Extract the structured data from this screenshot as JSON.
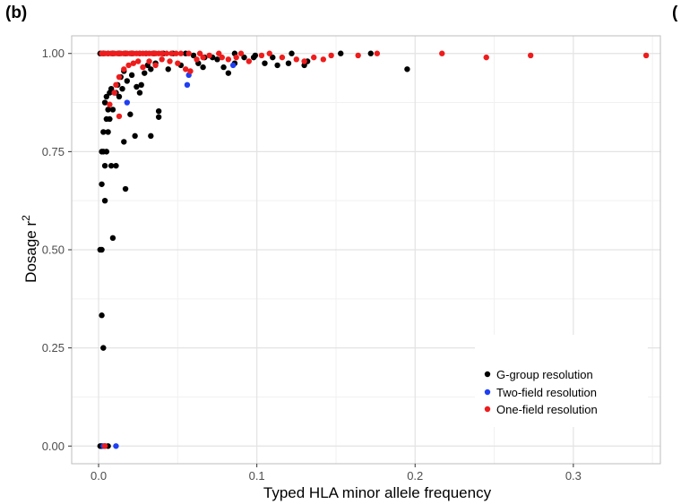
{
  "panel_label": "(b)",
  "next_panel_label": "(",
  "colors": {
    "g_group": "#000000",
    "two_field": "#1f3ff2",
    "one_field": "#ee1c1c",
    "grid_major": "#e3e3e3",
    "grid_minor": "#f1f1f1",
    "frame": "#bdbdbd"
  },
  "chart_data": {
    "type": "scatter",
    "xlabel": "Typed HLA minor allele frequency",
    "ylabel": "Dosage r",
    "ylabel_sup": "2",
    "xlim": [
      -0.017,
      0.355
    ],
    "ylim": [
      -0.045,
      1.045
    ],
    "x_ticks": [
      0.0,
      0.1,
      0.2,
      0.3
    ],
    "x_tick_labels": [
      "0.0",
      "0.1",
      "0.2",
      "0.3"
    ],
    "y_ticks": [
      0.0,
      0.25,
      0.5,
      0.75,
      1.0
    ],
    "y_tick_labels": [
      "0.00",
      "0.25",
      "0.50",
      "0.75",
      "1.00"
    ],
    "grid": true,
    "legend_position": "bottom-right",
    "series": [
      {
        "name": "G-group resolution",
        "color": "#000000",
        "points": [
          [
            0.001,
            0.0
          ],
          [
            0.002,
            0.0
          ],
          [
            0.004,
            0.0
          ],
          [
            0.006,
            0.0
          ],
          [
            0.002,
            0.333
          ],
          [
            0.003,
            0.25
          ],
          [
            0.001,
            0.5
          ],
          [
            0.002,
            0.5
          ],
          [
            0.009,
            0.53
          ],
          [
            0.002,
            0.667
          ],
          [
            0.004,
            0.625
          ],
          [
            0.017,
            0.655
          ],
          [
            0.002,
            0.75
          ],
          [
            0.003,
            0.75
          ],
          [
            0.005,
            0.75
          ],
          [
            0.004,
            0.714
          ],
          [
            0.008,
            0.714
          ],
          [
            0.011,
            0.714
          ],
          [
            0.016,
            0.775
          ],
          [
            0.023,
            0.79
          ],
          [
            0.033,
            0.79
          ],
          [
            0.003,
            0.8
          ],
          [
            0.006,
            0.8
          ],
          [
            0.005,
            0.833
          ],
          [
            0.007,
            0.833
          ],
          [
            0.006,
            0.857
          ],
          [
            0.004,
            0.875
          ],
          [
            0.009,
            0.857
          ],
          [
            0.011,
            0.9
          ],
          [
            0.013,
            0.89
          ],
          [
            0.015,
            0.91
          ],
          [
            0.02,
            0.845
          ],
          [
            0.038,
            0.838
          ],
          [
            0.038,
            0.853
          ],
          [
            0.005,
            0.89
          ],
          [
            0.007,
            0.9
          ],
          [
            0.008,
            0.91
          ],
          [
            0.012,
            0.92
          ],
          [
            0.014,
            0.94
          ],
          [
            0.016,
            0.955
          ],
          [
            0.018,
            0.93
          ],
          [
            0.021,
            0.945
          ],
          [
            0.024,
            0.915
          ],
          [
            0.026,
            0.9
          ],
          [
            0.027,
            0.92
          ],
          [
            0.029,
            0.95
          ],
          [
            0.031,
            0.97
          ],
          [
            0.033,
            0.96
          ],
          [
            0.036,
            0.975
          ],
          [
            0.044,
            0.96
          ],
          [
            0.052,
            0.97
          ],
          [
            0.063,
            0.975
          ],
          [
            0.066,
            0.965
          ],
          [
            0.075,
            0.985
          ],
          [
            0.079,
            0.965
          ],
          [
            0.082,
            0.95
          ],
          [
            0.086,
            0.975
          ],
          [
            0.092,
            0.99
          ],
          [
            0.098,
            0.99
          ],
          [
            0.105,
            0.975
          ],
          [
            0.11,
            0.99
          ],
          [
            0.113,
            0.97
          ],
          [
            0.12,
            0.975
          ],
          [
            0.122,
            1.0
          ],
          [
            0.13,
            0.97
          ],
          [
            0.132,
            0.98
          ],
          [
            0.153,
            1.0
          ],
          [
            0.172,
            1.0
          ],
          [
            0.195,
            0.96
          ],
          [
            0.001,
            1.0
          ],
          [
            0.003,
            1.0
          ],
          [
            0.006,
            1.0
          ],
          [
            0.009,
            1.0
          ],
          [
            0.013,
            1.0
          ],
          [
            0.017,
            1.0
          ],
          [
            0.021,
            1.0
          ],
          [
            0.026,
            1.0
          ],
          [
            0.03,
            1.0
          ],
          [
            0.035,
            1.0
          ],
          [
            0.041,
            1.0
          ],
          [
            0.047,
            1.0
          ],
          [
            0.055,
            1.0
          ],
          [
            0.06,
            0.995
          ],
          [
            0.067,
            0.99
          ],
          [
            0.072,
            0.99
          ],
          [
            0.099,
            0.995
          ],
          [
            0.086,
            1.0
          ]
        ]
      },
      {
        "name": "Two-field resolution",
        "color": "#1f3ff2",
        "points": [
          [
            0.003,
            0.0
          ],
          [
            0.011,
            0.0
          ],
          [
            0.018,
            0.875
          ],
          [
            0.056,
            0.92
          ],
          [
            0.057,
            0.945
          ],
          [
            0.085,
            0.97
          ],
          [
            0.01,
            0.9
          ]
        ]
      },
      {
        "name": "One-field resolution",
        "color": "#ee1c1c",
        "points": [
          [
            0.004,
            0.0
          ],
          [
            0.007,
            0.87
          ],
          [
            0.01,
            0.9
          ],
          [
            0.013,
            0.84
          ],
          [
            0.011,
            0.92
          ],
          [
            0.013,
            0.94
          ],
          [
            0.016,
            0.96
          ],
          [
            0.019,
            0.97
          ],
          [
            0.022,
            0.975
          ],
          [
            0.025,
            0.98
          ],
          [
            0.028,
            0.965
          ],
          [
            0.032,
            0.98
          ],
          [
            0.036,
            0.97
          ],
          [
            0.04,
            0.985
          ],
          [
            0.045,
            0.98
          ],
          [
            0.05,
            0.975
          ],
          [
            0.055,
            0.96
          ],
          [
            0.058,
            0.955
          ],
          [
            0.062,
            0.985
          ],
          [
            0.066,
            0.99
          ],
          [
            0.07,
            0.995
          ],
          [
            0.078,
            0.99
          ],
          [
            0.082,
            0.985
          ],
          [
            0.087,
            0.99
          ],
          [
            0.09,
            1.0
          ],
          [
            0.095,
            0.98
          ],
          [
            0.103,
            0.995
          ],
          [
            0.108,
            1.0
          ],
          [
            0.116,
            0.99
          ],
          [
            0.125,
            0.985
          ],
          [
            0.13,
            0.98
          ],
          [
            0.136,
            0.99
          ],
          [
            0.142,
            0.985
          ],
          [
            0.147,
            0.995
          ],
          [
            0.164,
            0.995
          ],
          [
            0.176,
            1.0
          ],
          [
            0.217,
            1.0
          ],
          [
            0.245,
            0.99
          ],
          [
            0.273,
            0.995
          ],
          [
            0.346,
            0.995
          ],
          [
            0.002,
            1.0
          ],
          [
            0.004,
            1.0
          ],
          [
            0.006,
            1.0
          ],
          [
            0.008,
            1.0
          ],
          [
            0.01,
            1.0
          ],
          [
            0.012,
            1.0
          ],
          [
            0.014,
            1.0
          ],
          [
            0.016,
            1.0
          ],
          [
            0.018,
            1.0
          ],
          [
            0.02,
            1.0
          ],
          [
            0.022,
            1.0
          ],
          [
            0.024,
            1.0
          ],
          [
            0.026,
            1.0
          ],
          [
            0.028,
            1.0
          ],
          [
            0.03,
            1.0
          ],
          [
            0.032,
            1.0
          ],
          [
            0.034,
            1.0
          ],
          [
            0.036,
            1.0
          ],
          [
            0.038,
            1.0
          ],
          [
            0.04,
            1.0
          ],
          [
            0.043,
            1.0
          ],
          [
            0.046,
            1.0
          ],
          [
            0.049,
            1.0
          ],
          [
            0.052,
            1.0
          ],
          [
            0.057,
            1.0
          ],
          [
            0.064,
            1.0
          ],
          [
            0.076,
            1.0
          ]
        ]
      }
    ]
  }
}
